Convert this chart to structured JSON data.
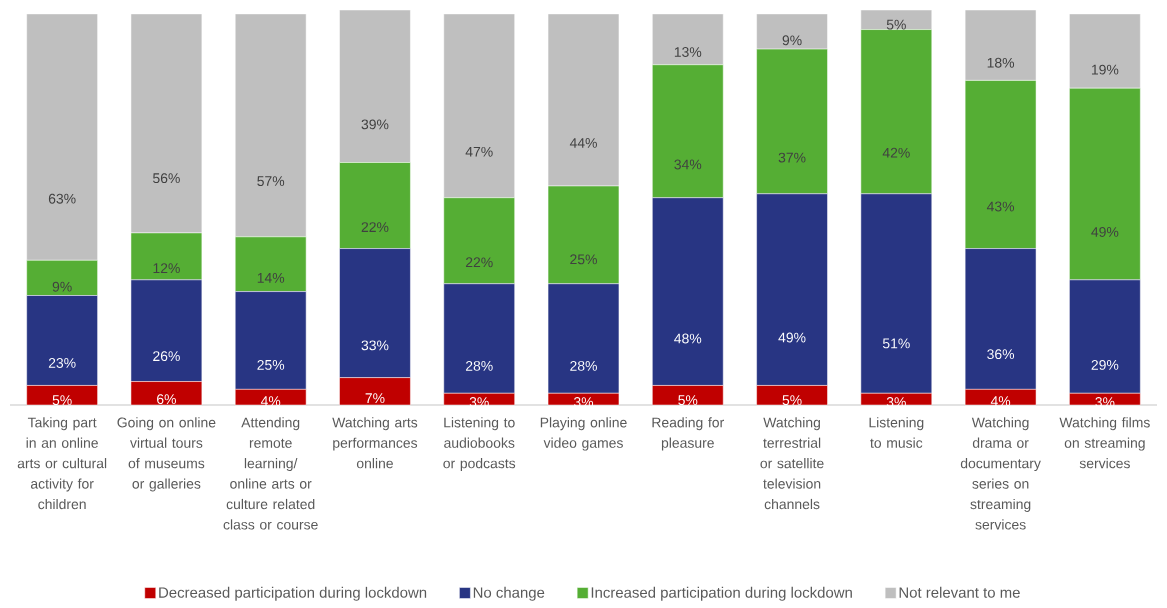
{
  "chart_data": {
    "type": "bar",
    "stacked": true,
    "categories": [
      "Taking part in an online arts or cultural activity for children",
      "Going on online virtual tours of museums or galleries",
      "Attending remote learning/ online arts or culture related class or course",
      "Watching arts performances online",
      "Listening to audiobooks or podcasts",
      "Playing online video games",
      "Reading for pleasure",
      "Watching terrestrial or satellite television channels",
      "Listening to music",
      "Watching drama or documentary series on streaming services",
      "Watching films on streaming services"
    ],
    "series": [
      {
        "name": "Decreased participation during lockdown",
        "color": "#c00000",
        "values": [
          5,
          6,
          4,
          7,
          3,
          3,
          5,
          5,
          3,
          4,
          3
        ],
        "value_labels": [
          "5%",
          "6%",
          "4%",
          "7%",
          "3%",
          "3%",
          "5%",
          "5%",
          "3%",
          "4%",
          "3%"
        ]
      },
      {
        "name": "No change",
        "color": "#283583",
        "values": [
          23,
          26,
          25,
          33,
          28,
          28,
          48,
          49,
          51,
          36,
          29
        ],
        "value_labels": [
          "23%",
          "26%",
          "25%",
          "33%",
          "28%",
          "28%",
          "48%",
          "49%",
          "51%",
          "36%",
          "29%"
        ]
      },
      {
        "name": "Increased participation during lockdown",
        "color": "#55ae34",
        "values": [
          9,
          12,
          14,
          22,
          22,
          25,
          34,
          37,
          42,
          43,
          49
        ],
        "value_labels": [
          "9%",
          "12%",
          "14%",
          "22%",
          "22%",
          "25%",
          "34%",
          "37%",
          "42%",
          "43%",
          "49%"
        ]
      },
      {
        "name": "Not relevant to me",
        "color": "#bfbfbf",
        "values": [
          63,
          56,
          57,
          39,
          47,
          44,
          13,
          9,
          5,
          18,
          19
        ],
        "value_labels": [
          "63%",
          "56%",
          "57%",
          "39%",
          "47%",
          "44%",
          "13%",
          "9%",
          "5%",
          "18%",
          "19%"
        ]
      }
    ],
    "legend": "bottom"
  }
}
